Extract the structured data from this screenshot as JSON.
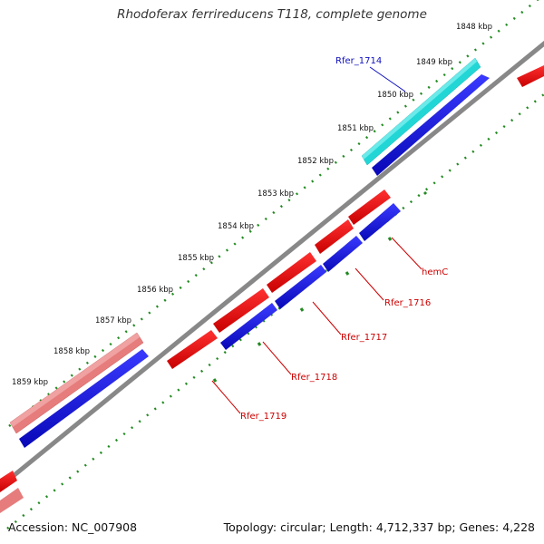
{
  "title": "Rhodoferax ferrireducens T118, complete genome",
  "footer": {
    "accession": "Accession: NC_007908",
    "info": "Topology: circular; Length: 4,712,337 bp; Genes: 4,228"
  },
  "ticks": [
    "1848 kbp",
    "1849 kbp",
    "1850 kbp",
    "1851 kbp",
    "1852 kbp",
    "1853 kbp",
    "1854 kbp",
    "1855 kbp",
    "1856 kbp",
    "1857 kbp",
    "1858 kbp",
    "1859 kbp"
  ],
  "genes": [
    {
      "label": "Rfer_1714",
      "color": "#1010c0"
    },
    {
      "label": "hemC",
      "color": "#cc0000"
    },
    {
      "label": "Rfer_1716",
      "color": "#cc0000"
    },
    {
      "label": "Rfer_1717",
      "color": "#cc0000"
    },
    {
      "label": "Rfer_1718",
      "color": "#cc0000"
    },
    {
      "label": "Rfer_1719",
      "color": "#cc0000"
    }
  ],
  "colors": {
    "backbone": "#888888",
    "tick_marks": "#228b22",
    "forward_gene": "#1515e0",
    "reverse_gene": "#ee1111",
    "highlight_gene": "#22d6d6",
    "pale_gene": "#e67c7c"
  }
}
